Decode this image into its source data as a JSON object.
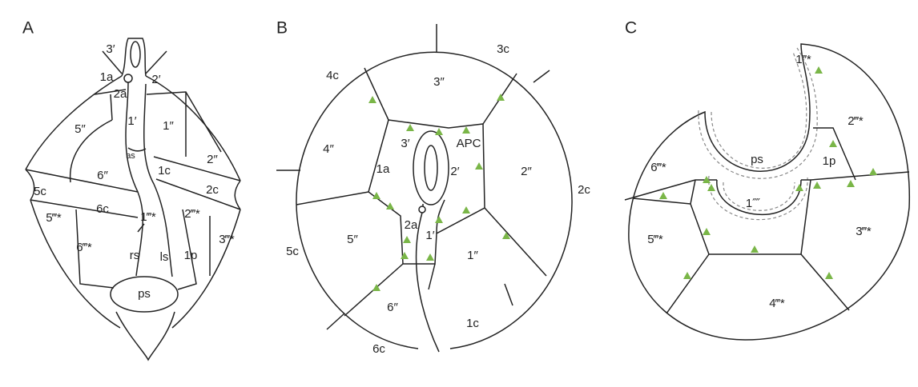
{
  "panels": [
    {
      "label": "A",
      "plates": [
        "3′",
        "1a",
        "2a",
        "2′",
        "1′",
        "1″",
        "5″",
        "2″",
        "as",
        "6″",
        "1c",
        "5c",
        "2c",
        "6c",
        "1‴*",
        "2‴*",
        "5‴*",
        "3‴*",
        "6‴*",
        "rs",
        "ls",
        "1p",
        "ps"
      ]
    },
    {
      "label": "B",
      "plates": [
        "3c",
        "4c",
        "3″",
        "4″",
        "3′",
        "APC",
        "1a",
        "2′",
        "2″",
        "2c",
        "5c",
        "5″",
        "2a",
        "1′",
        "1″",
        "6″",
        "1c",
        "6c"
      ]
    },
    {
      "label": "C",
      "plates": [
        "1‴*",
        "2‴*",
        "6‴*",
        "ps",
        "1p",
        "1⁗",
        "5‴*",
        "3‴*",
        "4‴*"
      ]
    }
  ]
}
